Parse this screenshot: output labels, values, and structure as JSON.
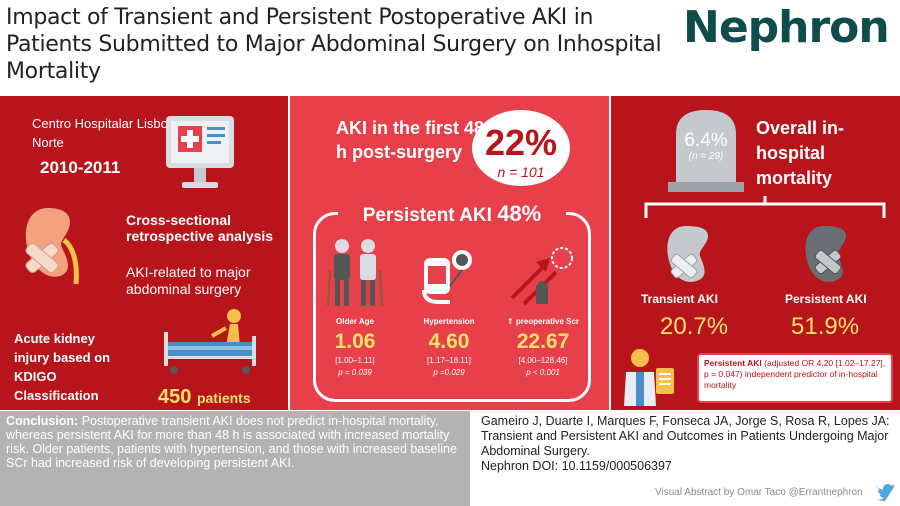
{
  "header": {
    "title": "Impact of Transient and Persistent Postoperative AKI in Patients Submitted to Major Abdominal Surgery on Inhospital Mortality",
    "journal": "Nephron"
  },
  "left": {
    "hospital": "Centro Hospitalar Lisboa Norte",
    "years": "2010-2011",
    "study_design": "Cross-sectional retrospective analysis",
    "study_scope": "AKI-related to major abdominal surgery",
    "definition": "Acute kidney injury based on KDIGO Classification",
    "patients_count": "450",
    "patients_unit": "patients"
  },
  "middle": {
    "aki_heading": "AKI in the first 48 h post-surgery",
    "aki_pct": "22%",
    "aki_n": "n = 101",
    "persistent_label": "Persistent AKI",
    "persistent_pct": "48%",
    "risks": [
      {
        "label": "Older Age",
        "value": "1.06",
        "ci": "[1.00–1.11]",
        "p": "p = 0.039"
      },
      {
        "label": "Hypertension",
        "value": "4.60",
        "ci": "[1.17–18.11]",
        "p": "p =0.029"
      },
      {
        "label": "⇑ preoperative Scr",
        "value": "22.67",
        "ci": "[4.00–128.46]",
        "p": "p < 0.001"
      }
    ]
  },
  "right": {
    "mortality_pct": "6.4%",
    "mortality_n": "(n = 29)",
    "overall_label": "Overall in-hospital mortality",
    "transient_label": "Transient AKI",
    "transient_value": "20.7%",
    "persistent_label": "Persistent AKI",
    "persistent_value": "51.9%",
    "callout_lead": "Persistent AKI",
    "callout_text": "(adjusted OR 4.20 [1.02–17.27], p = 0.047) independent predictor of in-hospital mortality"
  },
  "bottom": {
    "conclusion_lead": "Conclusion:",
    "conclusion_text": "Postoperative transient AKI does not predict in-hospital mortality, whereas persistent AKI for more than 48 h is associated with increased mortality risk. Older patients, patients with hypertension, and those with increased baseline SCr had increased risk of developing persistent AKI.",
    "reference": "Gameiro J, Duarte I, Marques F, Fonseca JA, Jorge S, Rosa R, Lopes JA: Transient and Persistent AKI and Outcomes in Patients Undergoing Major Abdominal Surgery.",
    "doi": "Nephron DOI: 10.1159/000506397",
    "credit": "Visual Abstract by Omar Taco @Errantnephron"
  },
  "icons": [
    "computer-hospital-icon",
    "kidney-bandage-icon",
    "patient-bed-icon",
    "elderly-couple-icon",
    "blood-pressure-icon",
    "creatinine-arrow-icon",
    "gravestone-icon",
    "kidney-transient-icon",
    "kidney-persistent-icon",
    "doctor-clipboard-icon",
    "twitter-icon"
  ],
  "colors": {
    "dark_red": "#b8141c",
    "coral": "#e8404a",
    "yellow": "#ffe26a",
    "teal": "#0f4d4d",
    "grey": "#b3b3b3"
  }
}
